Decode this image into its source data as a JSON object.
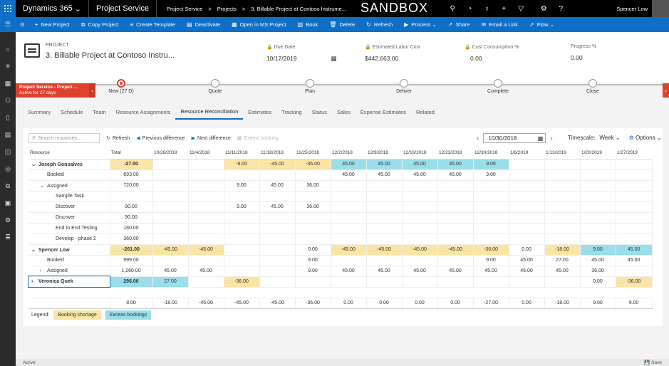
{
  "topbar": {
    "app_name": "Dynamics 365",
    "area": "Project Service",
    "breadcrumbs": [
      "Project Service",
      ">",
      "Projects",
      ">",
      "3. Billable Project at Contoso Instrume..."
    ],
    "env_label": "SANDBOX",
    "user": "Spencer Low"
  },
  "commands": [
    {
      "icon": "+",
      "name": "new-project",
      "label": "New Project"
    },
    {
      "icon": "⧉",
      "name": "copy-project",
      "label": "Copy Project"
    },
    {
      "icon": "≡",
      "name": "create-template",
      "label": "Create Template"
    },
    {
      "icon": "▤",
      "name": "deactivate",
      "label": "Deactivate"
    },
    {
      "icon": "▦",
      "name": "open-ms-project",
      "label": "Open in MS Project"
    },
    {
      "icon": "▥",
      "name": "book",
      "label": "Book"
    },
    {
      "icon": "🗑",
      "name": "delete",
      "label": "Delete"
    },
    {
      "icon": "↻",
      "name": "refresh",
      "label": "Refresh"
    },
    {
      "icon": "▶",
      "name": "process",
      "label": "Process ⌄"
    },
    {
      "icon": "↗",
      "name": "share",
      "label": "Share"
    },
    {
      "icon": "✉",
      "name": "email-link",
      "label": "Email a Link"
    },
    {
      "icon": "➚",
      "name": "flow",
      "label": "Flow ⌄"
    }
  ],
  "header": {
    "entity_type": "PROJECT",
    "title": "3. Billable Project at Contoso Instru...",
    "due_date_label": "Due Date",
    "due_date": "10/17/2019",
    "labor_cost_label": "Estimated Labor Cost",
    "labor_cost": "$442,663.00",
    "consumption_label": "Cost Consumption %",
    "consumption": "0.00",
    "progress_label": "Progress %",
    "progress": "0.00"
  },
  "bpf": {
    "active_name": "Project Service - Project ...",
    "active_sub": "Active for 27 days",
    "stages": [
      {
        "label": "New  (27 D)",
        "active": true
      },
      {
        "label": "Quote",
        "active": false
      },
      {
        "label": "Plan",
        "active": false
      },
      {
        "label": "Deliver",
        "active": false
      },
      {
        "label": "Complete",
        "active": false
      },
      {
        "label": "Close",
        "active": false
      }
    ]
  },
  "tabs": [
    "Summary",
    "Schedule",
    "Team",
    "Resource Assignments",
    "Resource Reconciliation",
    "Estimates",
    "Tracking",
    "Status",
    "Sales",
    "Expense Estimates",
    "Related"
  ],
  "selected_tab": "Resource Reconciliation",
  "recon": {
    "search_placeholder": "Search resources...",
    "refresh": "Refresh",
    "prev": "Previous difference",
    "next": "Next difference",
    "extend": "Extend booking",
    "date": "10/30/2018",
    "timescale_label": "Timescale:",
    "timescale": "Week ⌄",
    "options": "Options ⌄"
  },
  "grid": {
    "columns": [
      "Resource",
      "Total",
      "10/28/2018",
      "11/4/2018",
      "11/11/2018",
      "11/18/2018",
      "11/25/2018",
      "12/2/2018",
      "12/9/2018",
      "12/16/2018",
      "12/23/2018",
      "12/30/2018",
      "1/6/2019",
      "1/13/2019",
      "1/20/2019",
      "1/27/2019"
    ],
    "rows": [
      {
        "name": "Joseph Gonsalves",
        "indent": 0,
        "toggle": "⌄",
        "bold": true,
        "total": "-27.00",
        "total_style": "sh",
        "cells": [
          [
            "",
            ""
          ],
          [
            "",
            ""
          ],
          [
            "-9.00",
            "sh"
          ],
          [
            "-45.00",
            "sh"
          ],
          [
            "-36.00",
            "sh"
          ],
          [
            "45.00",
            "ex"
          ],
          [
            "45.00",
            "ex"
          ],
          [
            "45.00",
            "ex"
          ],
          [
            "45.00",
            "ex"
          ],
          [
            "9.00",
            "ex"
          ],
          [
            "",
            ""
          ],
          [
            "",
            ""
          ],
          [
            "",
            ""
          ],
          [
            "",
            ""
          ]
        ]
      },
      {
        "name": "Booked",
        "indent": 1,
        "toggle": "",
        "bold": false,
        "total": "693.00",
        "total_style": "",
        "cells": [
          [
            "",
            ""
          ],
          [
            "",
            ""
          ],
          [
            "",
            ""
          ],
          [
            "",
            ""
          ],
          [
            "",
            ""
          ],
          [
            "45.00",
            ""
          ],
          [
            "45.00",
            ""
          ],
          [
            "45.00",
            ""
          ],
          [
            "45.00",
            ""
          ],
          [
            "9.00",
            ""
          ],
          [
            "",
            ""
          ],
          [
            "",
            ""
          ],
          [
            "",
            ""
          ],
          [
            "",
            ""
          ]
        ]
      },
      {
        "name": "Assigned",
        "indent": 1,
        "toggle": "⌄",
        "bold": false,
        "total": "720.00",
        "total_style": "",
        "cells": [
          [
            "",
            ""
          ],
          [
            "",
            ""
          ],
          [
            "9.00",
            ""
          ],
          [
            "45.00",
            ""
          ],
          [
            "36.00",
            ""
          ],
          [
            "",
            ""
          ],
          [
            "",
            ""
          ],
          [
            "",
            ""
          ],
          [
            "",
            ""
          ],
          [
            "",
            ""
          ],
          [
            "",
            ""
          ],
          [
            "",
            ""
          ],
          [
            "",
            ""
          ],
          [
            "",
            ""
          ]
        ]
      },
      {
        "name": "Sample Task",
        "indent": 2,
        "toggle": "",
        "bold": false,
        "total": "",
        "total_style": "",
        "cells": [
          [
            "",
            ""
          ],
          [
            "",
            ""
          ],
          [
            "",
            ""
          ],
          [
            "",
            ""
          ],
          [
            "",
            ""
          ],
          [
            "",
            ""
          ],
          [
            "",
            ""
          ],
          [
            "",
            ""
          ],
          [
            "",
            ""
          ],
          [
            "",
            ""
          ],
          [
            "",
            ""
          ],
          [
            "",
            ""
          ],
          [
            "",
            ""
          ],
          [
            "",
            ""
          ]
        ]
      },
      {
        "name": "Discover",
        "indent": 2,
        "toggle": "",
        "bold": false,
        "total": "90.00",
        "total_style": "",
        "cells": [
          [
            "",
            ""
          ],
          [
            "",
            ""
          ],
          [
            "9.00",
            ""
          ],
          [
            "45.00",
            ""
          ],
          [
            "36.00",
            ""
          ],
          [
            "",
            ""
          ],
          [
            "",
            ""
          ],
          [
            "",
            ""
          ],
          [
            "",
            ""
          ],
          [
            "",
            ""
          ],
          [
            "",
            ""
          ],
          [
            "",
            ""
          ],
          [
            "",
            ""
          ],
          [
            "",
            ""
          ]
        ]
      },
      {
        "name": "Discover",
        "indent": 2,
        "toggle": "",
        "bold": false,
        "total": "90.00",
        "total_style": "",
        "cells": [
          [
            "",
            ""
          ],
          [
            "",
            ""
          ],
          [
            "",
            ""
          ],
          [
            "",
            ""
          ],
          [
            "",
            ""
          ],
          [
            "",
            ""
          ],
          [
            "",
            ""
          ],
          [
            "",
            ""
          ],
          [
            "",
            ""
          ],
          [
            "",
            ""
          ],
          [
            "",
            ""
          ],
          [
            "",
            ""
          ],
          [
            "",
            ""
          ],
          [
            "",
            ""
          ]
        ]
      },
      {
        "name": "End to End Testing",
        "indent": 2,
        "toggle": "",
        "bold": false,
        "total": "180.00",
        "total_style": "",
        "cells": [
          [
            "",
            ""
          ],
          [
            "",
            ""
          ],
          [
            "",
            ""
          ],
          [
            "",
            ""
          ],
          [
            "",
            ""
          ],
          [
            "",
            ""
          ],
          [
            "",
            ""
          ],
          [
            "",
            ""
          ],
          [
            "",
            ""
          ],
          [
            "",
            ""
          ],
          [
            "",
            ""
          ],
          [
            "",
            ""
          ],
          [
            "",
            ""
          ],
          [
            "",
            ""
          ]
        ]
      },
      {
        "name": "Develop - phase 2",
        "indent": 2,
        "toggle": "",
        "bold": false,
        "total": "360.00",
        "total_style": "",
        "cells": [
          [
            "",
            ""
          ],
          [
            "",
            ""
          ],
          [
            "",
            ""
          ],
          [
            "",
            ""
          ],
          [
            "",
            ""
          ],
          [
            "",
            ""
          ],
          [
            "",
            ""
          ],
          [
            "",
            ""
          ],
          [
            "",
            ""
          ],
          [
            "",
            ""
          ],
          [
            "",
            ""
          ],
          [
            "",
            ""
          ],
          [
            "",
            ""
          ],
          [
            "",
            ""
          ]
        ]
      },
      {
        "name": "Spencer Low",
        "indent": 0,
        "toggle": "⌄",
        "bold": true,
        "total": "-261.00",
        "total_style": "sh",
        "cells": [
          [
            "-45.00",
            "sh"
          ],
          [
            "-45.00",
            "sh"
          ],
          [
            "",
            ""
          ],
          [
            "",
            ""
          ],
          [
            "0.00",
            ""
          ],
          [
            "-45.00",
            "sh"
          ],
          [
            "-45.00",
            "sh"
          ],
          [
            "-45.00",
            "sh"
          ],
          [
            "-45.00",
            "sh"
          ],
          [
            "-36.00",
            "sh"
          ],
          [
            "0.00",
            ""
          ],
          [
            "-18.00",
            "sh"
          ],
          [
            "9.00",
            "ex"
          ],
          [
            "45.00",
            "ex"
          ]
        ]
      },
      {
        "name": "Booked",
        "indent": 1,
        "toggle": "",
        "bold": false,
        "total": "999.00",
        "total_style": "",
        "cells": [
          [
            "",
            ""
          ],
          [
            "",
            ""
          ],
          [
            "",
            ""
          ],
          [
            "",
            ""
          ],
          [
            "9.00",
            ""
          ],
          [
            "",
            ""
          ],
          [
            "",
            ""
          ],
          [
            "",
            ""
          ],
          [
            "",
            ""
          ],
          [
            "9.00",
            ""
          ],
          [
            "45.00",
            ""
          ],
          [
            "27.00",
            ""
          ],
          [
            "45.00",
            ""
          ],
          [
            "45.00",
            ""
          ]
        ]
      },
      {
        "name": "Assigned",
        "indent": 1,
        "toggle": "›",
        "bold": false,
        "total": "1,260.00",
        "total_style": "",
        "cells": [
          [
            "45.00",
            ""
          ],
          [
            "45.00",
            ""
          ],
          [
            "",
            ""
          ],
          [
            "",
            ""
          ],
          [
            "9.00",
            ""
          ],
          [
            "45.00",
            ""
          ],
          [
            "45.00",
            ""
          ],
          [
            "45.00",
            ""
          ],
          [
            "45.00",
            ""
          ],
          [
            "45.00",
            ""
          ],
          [
            "45.00",
            ""
          ],
          [
            "45.00",
            ""
          ],
          [
            "36.00",
            ""
          ],
          [
            "",
            ""
          ]
        ]
      },
      {
        "name": "Veronica Quek",
        "indent": 0,
        "toggle": "›",
        "bold": true,
        "total": "296.00",
        "total_style": "ex",
        "selected": true,
        "cells": [
          [
            "27.00",
            "ex"
          ],
          [
            "",
            ""
          ],
          [
            "-36.00",
            "sh"
          ],
          [
            "",
            ""
          ],
          [
            "",
            ""
          ],
          [
            "",
            ""
          ],
          [
            "",
            ""
          ],
          [
            "",
            ""
          ],
          [
            "",
            ""
          ],
          [
            "",
            ""
          ],
          [
            "",
            ""
          ],
          [
            "",
            ""
          ],
          [
            "0.00",
            ""
          ],
          [
            "-36.00",
            "sh"
          ]
        ]
      }
    ],
    "totals": [
      "",
      "8.00",
      "-18.00",
      "-45.00",
      "-45.00",
      "-45.00",
      "-36.00",
      "0.00",
      "0.00",
      "0.00",
      "0.00",
      "-27.00",
      "0.00",
      "-18.00",
      "9.00",
      "9.00"
    ]
  },
  "legend": {
    "label": "Legend:",
    "shortage": "Booking shortage",
    "excess": "Excess bookings"
  },
  "status": {
    "state": "Active",
    "save": "Save"
  },
  "colors": {
    "brand": "#0f6fc6",
    "shortage": "#fae5a6",
    "excess": "#9adeea",
    "bpf_active": "#e0412f"
  }
}
